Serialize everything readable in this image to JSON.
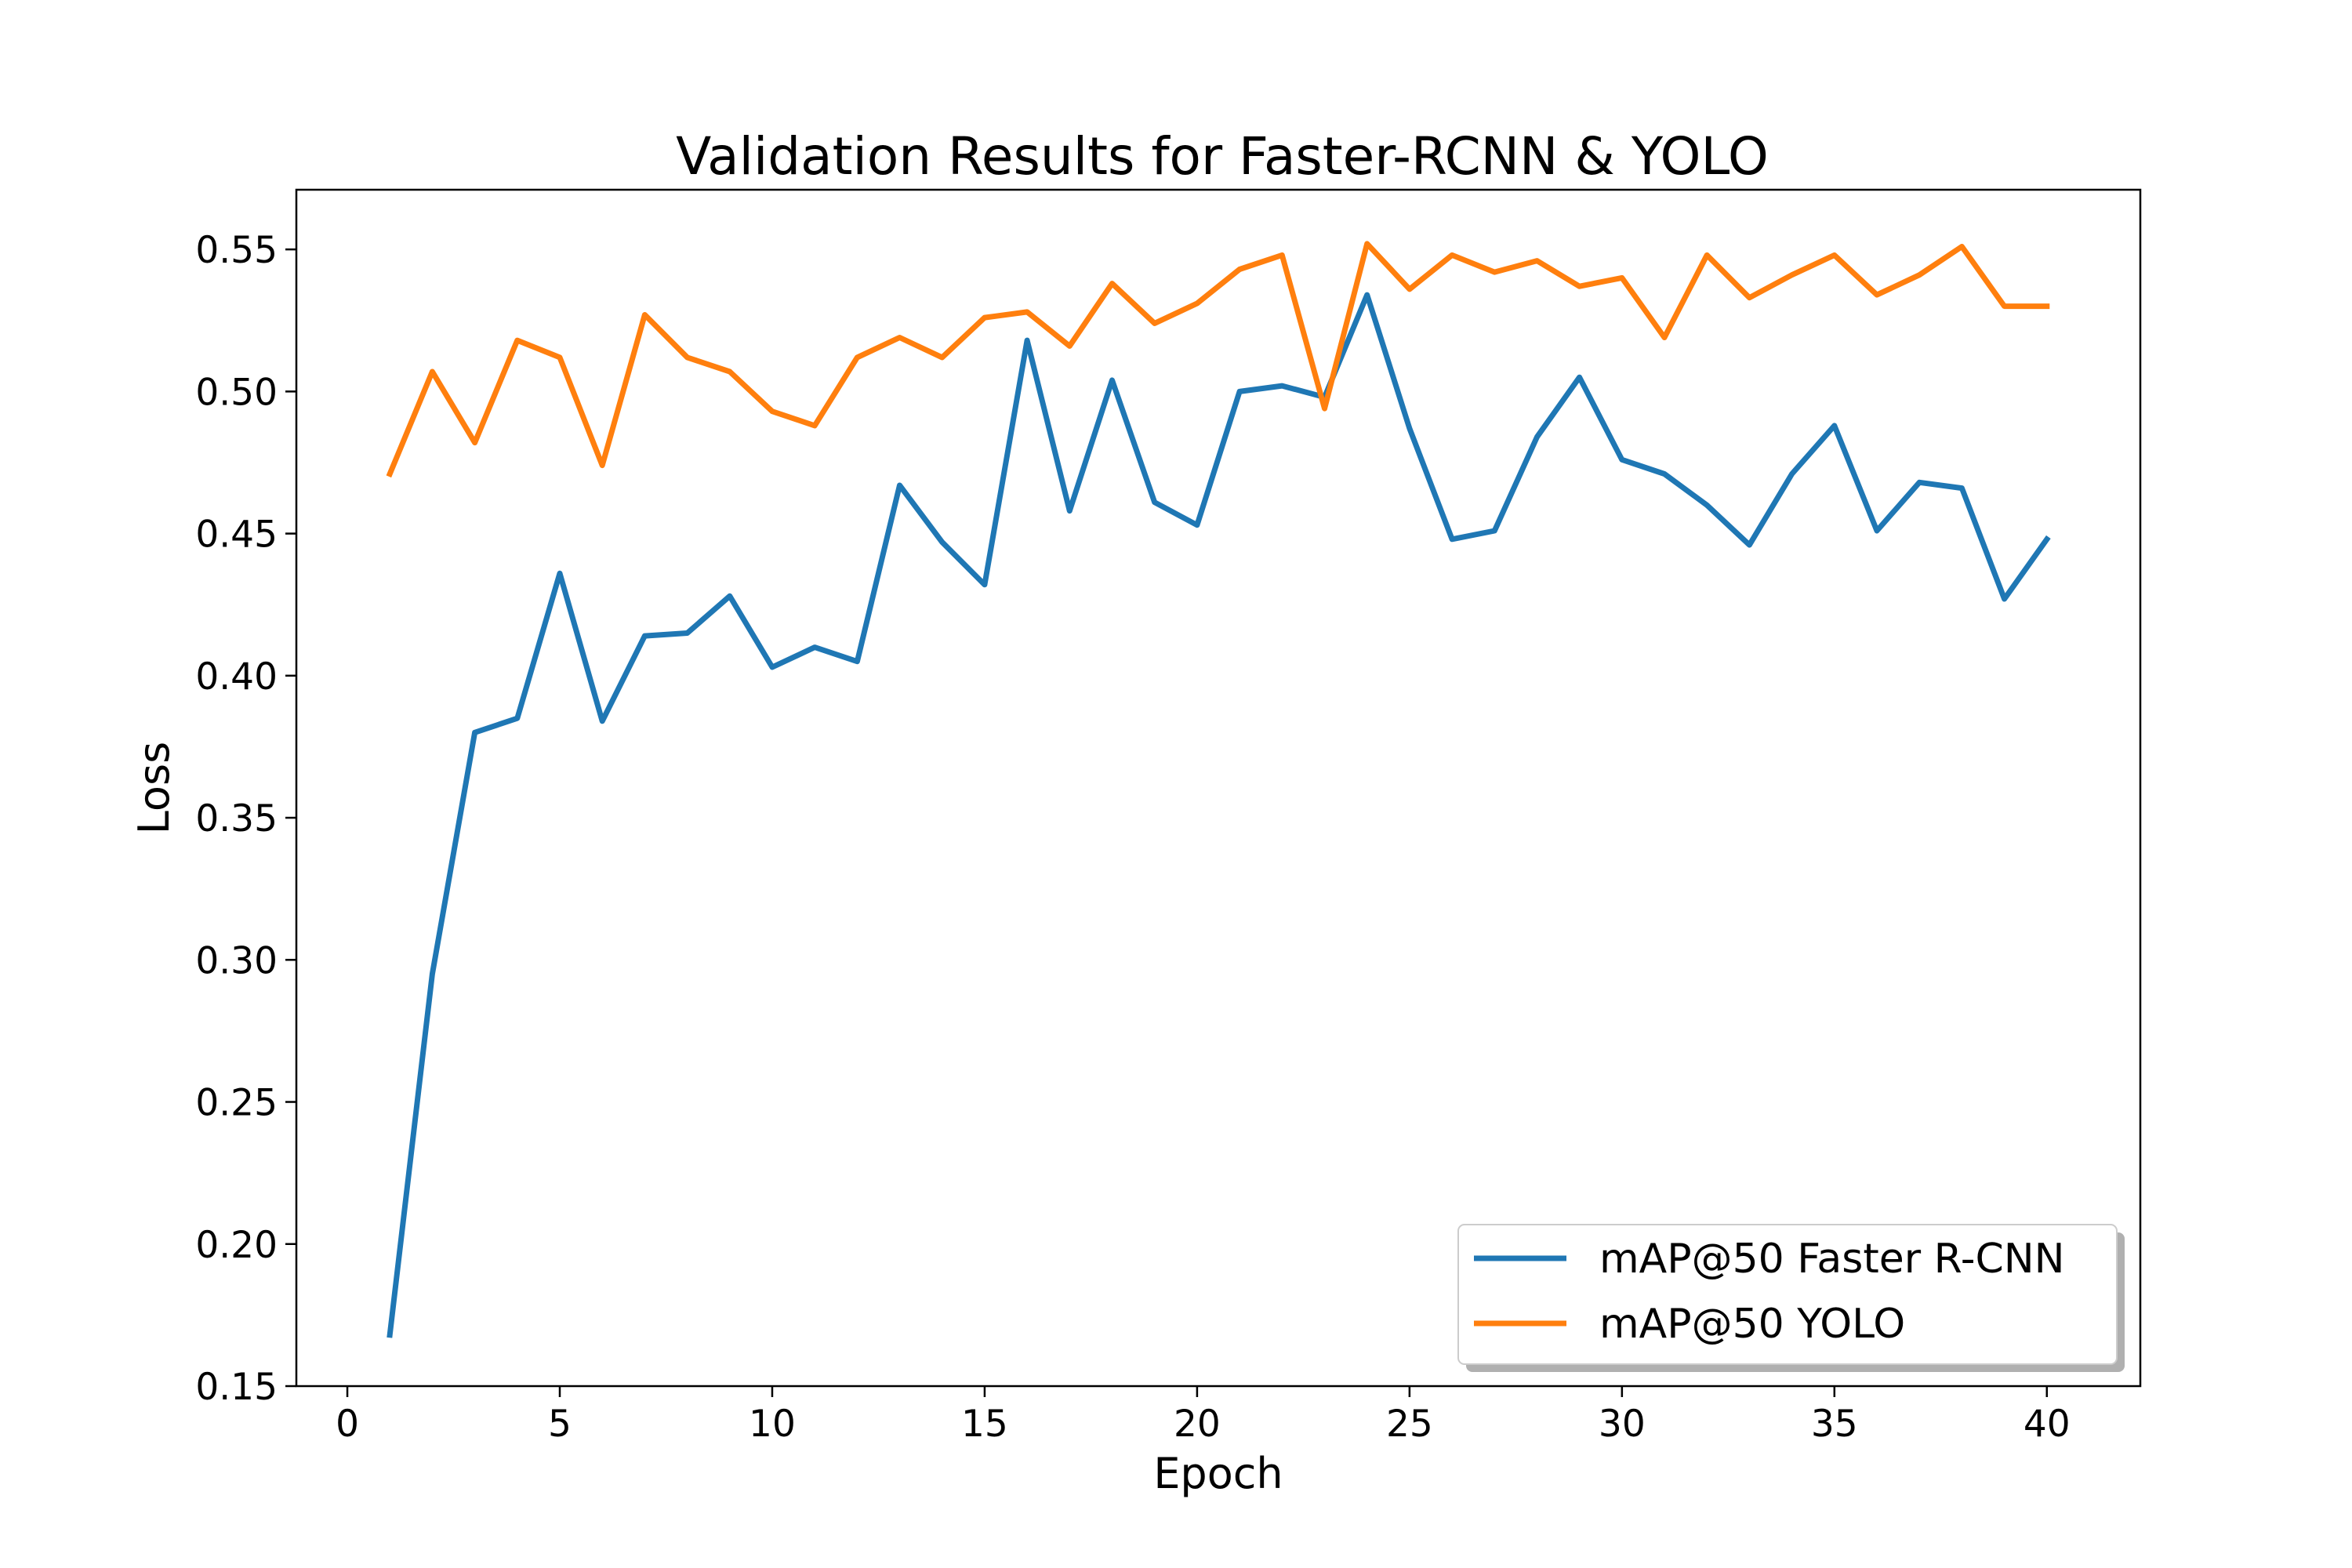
{
  "chart_data": {
    "type": "line",
    "title": "Validation Results for Faster-RCNN & YOLO",
    "xlabel": "Epoch",
    "ylabel": "Loss",
    "xlim": [
      -1.2,
      42.2
    ],
    "ylim": [
      0.15,
      0.571
    ],
    "xticks": [
      0,
      5,
      10,
      15,
      20,
      25,
      30,
      35,
      40
    ],
    "yticks": [
      0.15,
      0.2,
      0.25,
      0.3,
      0.35,
      0.4,
      0.45,
      0.5,
      0.55
    ],
    "grid": false,
    "legend_position": "lower-right",
    "x": [
      1,
      2,
      3,
      4,
      5,
      6,
      7,
      8,
      9,
      10,
      11,
      12,
      13,
      14,
      15,
      16,
      17,
      18,
      19,
      20,
      21,
      22,
      23,
      24,
      25,
      26,
      27,
      28,
      29,
      30,
      31,
      32,
      33,
      34,
      35,
      36,
      37,
      38,
      39,
      40
    ],
    "series": [
      {
        "name": "mAP@50 Faster R-CNN",
        "color": "#1f77b4",
        "values": [
          0.168,
          0.295,
          0.38,
          0.385,
          0.436,
          0.384,
          0.414,
          0.415,
          0.428,
          0.403,
          0.41,
          0.405,
          0.467,
          0.447,
          0.432,
          0.518,
          0.458,
          0.504,
          0.461,
          0.453,
          0.5,
          0.502,
          0.498,
          0.534,
          0.487,
          0.448,
          0.451,
          0.484,
          0.505,
          0.476,
          0.471,
          0.46,
          0.446,
          0.471,
          0.488,
          0.451,
          0.468,
          0.466,
          0.427,
          0.448
        ]
      },
      {
        "name": "mAP@50 YOLO",
        "color": "#ff7f0e",
        "values": [
          0.471,
          0.507,
          0.482,
          0.518,
          0.512,
          0.474,
          0.527,
          0.512,
          0.507,
          0.493,
          0.488,
          0.512,
          0.519,
          0.512,
          0.526,
          0.528,
          0.516,
          0.538,
          0.524,
          0.531,
          0.543,
          0.548,
          0.494,
          0.552,
          0.536,
          0.548,
          0.542,
          0.546,
          0.537,
          0.54,
          0.519,
          0.548,
          0.533,
          0.541,
          0.548,
          0.534,
          0.541,
          0.551,
          0.53,
          0.53
        ]
      }
    ]
  }
}
